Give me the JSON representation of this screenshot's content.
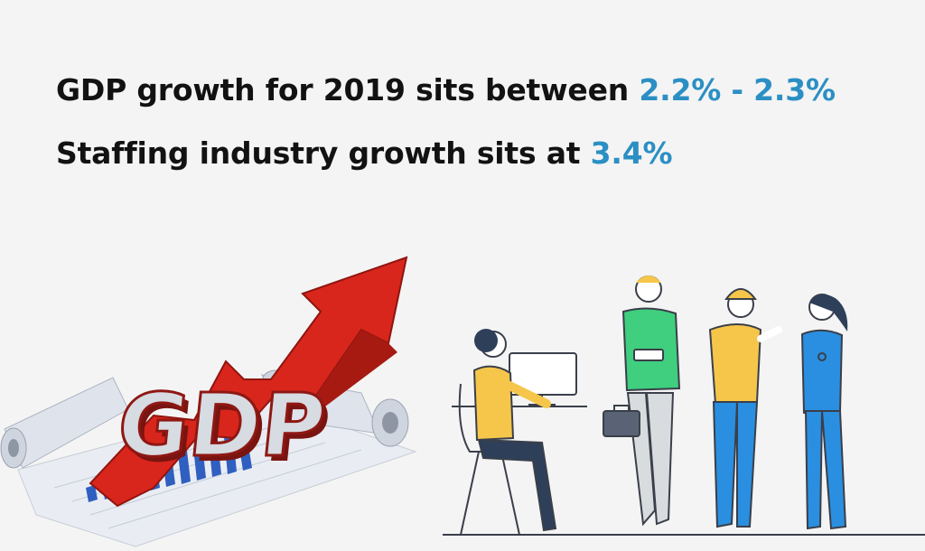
{
  "headline1": {
    "text": "GDP growth for 2019 sits between ",
    "highlight": "2.2% - 2.3%"
  },
  "headline2": {
    "text": "Staffing industry growth sits at ",
    "highlight": "3.4%"
  },
  "gdp_image": {
    "letters": "GDP"
  },
  "colors": {
    "background": "#f4f4f4",
    "text": "#121212",
    "highlight": "#2b8fc4",
    "arrow_red": "#d8261c",
    "bar_blue": "#2f5fc0"
  }
}
